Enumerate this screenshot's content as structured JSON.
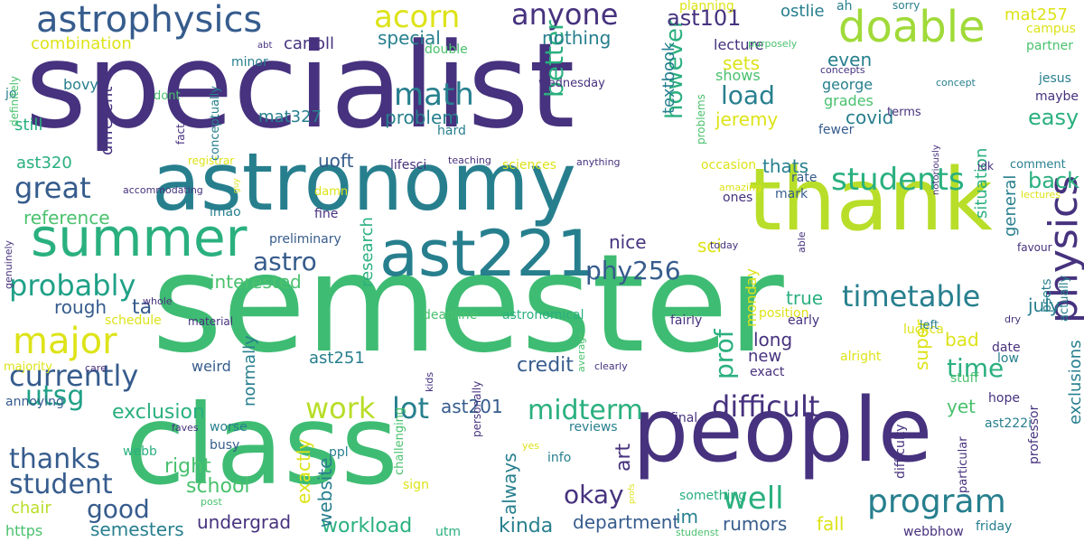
{
  "palette": {
    "purple": "#46327e",
    "teal": "#277f8e",
    "green": "#4ac16d",
    "lime": "#b8de29",
    "blue": "#365c8d",
    "cyan": "#1fa187",
    "yellow": "#dde318"
  },
  "words": [
    {
      "text": "specialist",
      "color": "#46327e",
      "rot": 0
    },
    {
      "text": "semester",
      "color": "#3fbc73",
      "rot": 0
    },
    {
      "text": "class",
      "color": "#3fbc73",
      "rot": 0
    },
    {
      "text": "astronomy",
      "color": "#277f8e",
      "rot": 0
    },
    {
      "text": "people",
      "color": "#46327e",
      "rot": 0
    },
    {
      "text": "thank",
      "color": "#b8de29",
      "rot": 0
    },
    {
      "text": "ast221",
      "color": "#277f8e",
      "rot": 0
    },
    {
      "text": "summer",
      "color": "#2ab07f",
      "rot": 0
    },
    {
      "text": "astrophysics",
      "color": "#365c8d",
      "rot": 0
    },
    {
      "text": "doable",
      "color": "#a0da39",
      "rot": 0
    },
    {
      "text": "physics",
      "color": "#46327e",
      "rot": 90
    },
    {
      "text": "program",
      "color": "#277f8e",
      "rot": 0
    },
    {
      "text": "major",
      "color": "#dde318",
      "rot": 0
    },
    {
      "text": "students",
      "color": "#2ab07f",
      "rot": 0
    },
    {
      "text": "acorn",
      "color": "#dde318",
      "rot": 0
    },
    {
      "text": "math",
      "color": "#277f8e",
      "rot": 0
    },
    {
      "text": "anyone",
      "color": "#46327e",
      "rot": 0
    },
    {
      "text": "great",
      "color": "#365c8d",
      "rot": 0
    },
    {
      "text": "probably",
      "color": "#1fa187",
      "rot": 0
    },
    {
      "text": "currently",
      "color": "#365c8d",
      "rot": 0
    },
    {
      "text": "well",
      "color": "#2ab07f",
      "rot": 0
    },
    {
      "text": "work",
      "color": "#b8de29",
      "rot": 0
    },
    {
      "text": "difficult",
      "color": "#46327e",
      "rot": 0
    },
    {
      "text": "timetable",
      "color": "#277f8e",
      "rot": 0
    },
    {
      "text": "midterm",
      "color": "#2ab07f",
      "rot": 0
    },
    {
      "text": "okay",
      "color": "#46327e",
      "rot": 0
    },
    {
      "text": "thanks",
      "color": "#365c8d",
      "rot": 0
    },
    {
      "text": "student",
      "color": "#365c8d",
      "rot": 0
    },
    {
      "text": "utsg",
      "color": "#1fa187",
      "rot": 0
    },
    {
      "text": "good",
      "color": "#365c8d",
      "rot": 0
    },
    {
      "text": "lot",
      "color": "#277f8e",
      "rot": 0
    },
    {
      "text": "time",
      "color": "#2ab07f",
      "rot": 0
    },
    {
      "text": "prof",
      "color": "#2ab07f",
      "rot": 90
    },
    {
      "text": "load",
      "color": "#277f8e",
      "rot": 0
    },
    {
      "text": "phy256",
      "color": "#365c8d",
      "rot": 0
    },
    {
      "text": "astro",
      "color": "#365c8d",
      "rot": 0
    },
    {
      "text": "better",
      "color": "#2ab07f",
      "rot": 90
    },
    {
      "text": "however",
      "color": "#2ab07f",
      "rot": 90
    },
    {
      "text": "ast101",
      "color": "#46327e",
      "rot": 0
    },
    {
      "text": "easy",
      "color": "#2ab07f",
      "rot": 0
    },
    {
      "text": "back",
      "color": "#2ab07f",
      "rot": 0
    },
    {
      "text": "exclusion",
      "color": "#2ab07f",
      "rot": 0
    },
    {
      "text": "right",
      "color": "#4ac16d",
      "rot": 0
    },
    {
      "text": "school",
      "color": "#4ac16d",
      "rot": 0
    },
    {
      "text": "kinda",
      "color": "#277f8e",
      "rot": 0
    },
    {
      "text": "department",
      "color": "#365c8d",
      "rot": 0
    },
    {
      "text": "workload",
      "color": "#2ab07f",
      "rot": 0
    },
    {
      "text": "undergrad",
      "color": "#46327e",
      "rot": 0
    },
    {
      "text": "semesters",
      "color": "#277f8e",
      "rot": 0
    },
    {
      "text": "rumors",
      "color": "#365c8d",
      "rot": 0
    },
    {
      "text": "fall",
      "color": "#dde318",
      "rot": 0
    },
    {
      "text": "im",
      "color": "#277f8e",
      "rot": 0
    },
    {
      "text": "credit",
      "color": "#365c8d",
      "rot": 0
    },
    {
      "text": "ast201",
      "color": "#365c8d",
      "rot": 0
    },
    {
      "text": "art",
      "color": "#46327e",
      "rot": 90
    },
    {
      "text": "always",
      "color": "#277f8e",
      "rot": 90
    },
    {
      "text": "website",
      "color": "#277f8e",
      "rot": 90
    },
    {
      "text": "exactly",
      "color": "#dde318",
      "rot": 90
    },
    {
      "text": "problem",
      "color": "#277f8e",
      "rot": 0
    },
    {
      "text": "special",
      "color": "#277f8e",
      "rot": 0
    },
    {
      "text": "nothing",
      "color": "#277f8e",
      "rot": 0
    },
    {
      "text": "sets",
      "color": "#dde318",
      "rot": 0
    },
    {
      "text": "even",
      "color": "#277f8e",
      "rot": 0
    },
    {
      "text": "jeremy",
      "color": "#dde318",
      "rot": 0
    },
    {
      "text": "covid",
      "color": "#277f8e",
      "rot": 0
    },
    {
      "text": "thats",
      "color": "#277f8e",
      "rot": 0
    },
    {
      "text": "uoft",
      "color": "#365c8d",
      "rot": 0
    },
    {
      "text": "reference",
      "color": "#4ac16d",
      "rot": 0
    },
    {
      "text": "interested",
      "color": "#4ac16d",
      "rot": 0
    },
    {
      "text": "rough",
      "color": "#365c8d",
      "rot": 0
    },
    {
      "text": "ta",
      "color": "#365c8d",
      "rot": 0
    },
    {
      "text": "nice",
      "color": "#46327e",
      "rot": 0
    },
    {
      "text": "true",
      "color": "#2ab07f",
      "rot": 0
    },
    {
      "text": "long",
      "color": "#46327e",
      "rot": 0
    },
    {
      "text": "new",
      "color": "#46327e",
      "rot": 0
    },
    {
      "text": "july",
      "color": "#277f8e",
      "rot": 0
    },
    {
      "text": "bad",
      "color": "#dde318",
      "rot": 0
    },
    {
      "text": "yet",
      "color": "#4ac16d",
      "rot": 0
    },
    {
      "text": "super",
      "color": "#dde318",
      "rot": 90
    },
    {
      "text": "sci",
      "color": "#dde318",
      "rot": 0
    },
    {
      "text": "ast251",
      "color": "#277f8e",
      "rot": 0
    },
    {
      "text": "mat327",
      "color": "#277f8e",
      "rot": 0
    },
    {
      "text": "carroll",
      "color": "#46327e",
      "rot": 0
    },
    {
      "text": "combination",
      "color": "#dde318",
      "rot": 0
    },
    {
      "text": "mat257",
      "color": "#dde318",
      "rot": 0
    },
    {
      "text": "ostlie",
      "color": "#277f8e",
      "rot": 0
    },
    {
      "text": "situation",
      "color": "#2ab07f",
      "rot": 90
    },
    {
      "text": "general",
      "color": "#277f8e",
      "rot": 90
    },
    {
      "text": "george",
      "color": "#277f8e",
      "rot": 0
    },
    {
      "text": "grades",
      "color": "#4ac16d",
      "rot": 0
    },
    {
      "text": "lecture",
      "color": "#46327e",
      "rot": 0
    },
    {
      "text": "shows",
      "color": "#4ac16d",
      "rot": 0
    },
    {
      "text": "textbook",
      "color": "#277f8e",
      "rot": 90
    },
    {
      "text": "still",
      "color": "#2ab07f",
      "rot": 0
    },
    {
      "text": "ast320",
      "color": "#2ab07f",
      "rot": 0
    },
    {
      "text": "bovy",
      "color": "#277f8e",
      "rot": 0
    },
    {
      "text": "different",
      "color": "#46327e",
      "rot": 90
    },
    {
      "text": "research",
      "color": "#2ab07f",
      "rot": 90
    },
    {
      "text": "normally",
      "color": "#277f8e",
      "rot": 90
    },
    {
      "text": "monday",
      "color": "#dde318",
      "rot": 90
    },
    {
      "text": "weird",
      "color": "#365c8d",
      "rot": 0
    },
    {
      "text": "exclusions",
      "color": "#277f8e",
      "rot": 90
    },
    {
      "text": "chair",
      "color": "#b8de29",
      "rot": 0
    },
    {
      "text": "https",
      "color": "#4ac16d",
      "rot": 0
    },
    {
      "text": "webb",
      "color": "#2ab07f",
      "rot": 0
    },
    {
      "text": "busy",
      "color": "#365c8d",
      "rot": 0
    },
    {
      "text": "worse",
      "color": "#277f8e",
      "rot": 0
    },
    {
      "text": "final",
      "color": "#46327e",
      "rot": 0
    },
    {
      "text": "reviews",
      "color": "#277f8e",
      "rot": 0
    },
    {
      "text": "info",
      "color": "#277f8e",
      "rot": 0
    },
    {
      "text": "something",
      "color": "#2ab07f",
      "rot": 0
    },
    {
      "text": "friday",
      "color": "#277f8e",
      "rot": 0
    },
    {
      "text": "webbhow",
      "color": "#46327e",
      "rot": 0
    },
    {
      "text": "utm",
      "color": "#2ab07f",
      "rot": 0
    },
    {
      "text": "sign",
      "color": "#dde318",
      "rot": 0
    },
    {
      "text": "ppl",
      "color": "#277f8e",
      "rot": 0
    },
    {
      "text": "hope",
      "color": "#46327e",
      "rot": 0
    },
    {
      "text": "ast222i",
      "color": "#277f8e",
      "rot": 0
    },
    {
      "text": "date",
      "color": "#46327e",
      "rot": 0
    },
    {
      "text": "low",
      "color": "#277f8e",
      "rot": 0
    },
    {
      "text": "stuff",
      "color": "#4ac16d",
      "rot": 0
    },
    {
      "text": "exact",
      "color": "#46327e",
      "rot": 0
    },
    {
      "text": "fairly",
      "color": "#46327e",
      "rot": 0
    },
    {
      "text": "early",
      "color": "#46327e",
      "rot": 0
    },
    {
      "text": "alright",
      "color": "#dde318",
      "rot": 0
    },
    {
      "text": "luckca",
      "color": "#dde318",
      "rot": 0
    },
    {
      "text": "position",
      "color": "#dde318",
      "rot": 0
    },
    {
      "text": "mark",
      "color": "#365c8d",
      "rot": 0
    },
    {
      "text": "rate",
      "color": "#365c8d",
      "rot": 0
    },
    {
      "text": "ones",
      "color": "#46327e",
      "rot": 0
    },
    {
      "text": "occasion",
      "color": "#dde318",
      "rot": 0
    },
    {
      "text": "sciences",
      "color": "#dde318",
      "rot": 0
    },
    {
      "text": "registrar",
      "color": "#dde318",
      "rot": 0
    },
    {
      "text": "lifesci",
      "color": "#46327e",
      "rot": 0
    },
    {
      "text": "teaching",
      "color": "#46327e",
      "rot": 0
    },
    {
      "text": "anything",
      "color": "#46327e",
      "rot": 0
    },
    {
      "text": "lmao",
      "color": "#277f8e",
      "rot": 0
    },
    {
      "text": "fine",
      "color": "#46327e",
      "rot": 0
    },
    {
      "text": "preliminary",
      "color": "#365c8d",
      "rot": 0
    },
    {
      "text": "damn",
      "color": "#dde318",
      "rot": 0
    },
    {
      "text": "deadline",
      "color": "#4ac16d",
      "rot": 0
    },
    {
      "text": "astronomical",
      "color": "#2ab07f",
      "rot": 0
    },
    {
      "text": "schedule",
      "color": "#dde318",
      "rot": 0
    },
    {
      "text": "material",
      "color": "#46327e",
      "rot": 0
    },
    {
      "text": "majority",
      "color": "#dde318",
      "rot": 0
    },
    {
      "text": "care",
      "color": "#46327e",
      "rot": 0
    },
    {
      "text": "annoying",
      "color": "#365c8d",
      "rot": 0
    },
    {
      "text": "faves",
      "color": "#46327e",
      "rot": 0
    },
    {
      "text": "post",
      "color": "#4ac16d",
      "rot": 0
    },
    {
      "text": "studenst",
      "color": "#4ac16d",
      "rot": 0
    },
    {
      "text": "yes",
      "color": "#dde318",
      "rot": 0
    },
    {
      "text": "clearly",
      "color": "#46327e",
      "rot": 0
    },
    {
      "text": "whole",
      "color": "#46327e",
      "rot": 0
    },
    {
      "text": "extra",
      "color": "#4ac16d",
      "rot": 0
    },
    {
      "text": "today",
      "color": "#46327e",
      "rot": 0
    },
    {
      "text": "amazing",
      "color": "#dde318",
      "rot": 0
    },
    {
      "text": "idk",
      "color": "#46327e",
      "rot": 0
    },
    {
      "text": "comment",
      "color": "#277f8e",
      "rot": 0
    },
    {
      "text": "lectures",
      "color": "#dde318",
      "rot": 0
    },
    {
      "text": "favour",
      "color": "#46327e",
      "rot": 0
    },
    {
      "text": "dry",
      "color": "#46327e",
      "rot": 0
    },
    {
      "text": "left",
      "color": "#277f8e",
      "rot": 0
    },
    {
      "text": "maybe",
      "color": "#46327e",
      "rot": 0
    },
    {
      "text": "terms",
      "color": "#46327e",
      "rot": 0
    },
    {
      "text": "fewer",
      "color": "#365c8d",
      "rot": 0
    },
    {
      "text": "jesus",
      "color": "#277f8e",
      "rot": 0
    },
    {
      "text": "campus",
      "color": "#dde318",
      "rot": 0
    },
    {
      "text": "partner",
      "color": "#4ac16d",
      "rot": 0
    },
    {
      "text": "sorry",
      "color": "#277f8e",
      "rot": 0
    },
    {
      "text": "ah",
      "color": "#277f8e",
      "rot": 0
    },
    {
      "text": "planning",
      "color": "#dde318",
      "rot": 0
    },
    {
      "text": "purposely",
      "color": "#4ac16d",
      "rot": 0
    },
    {
      "text": "concepts",
      "color": "#46327e",
      "rot": 0
    },
    {
      "text": "concept",
      "color": "#277f8e",
      "rot": 0
    },
    {
      "text": "hard",
      "color": "#277f8e",
      "rot": 0
    },
    {
      "text": "wednesday",
      "color": "#46327e",
      "rot": 0
    },
    {
      "text": "double",
      "color": "#4ac16d",
      "rot": 0
    },
    {
      "text": "minor",
      "color": "#277f8e",
      "rot": 0
    },
    {
      "text": "abt",
      "color": "#46327e",
      "rot": 0
    },
    {
      "text": "dont",
      "color": "#4ac16d",
      "rot": 0
    },
    {
      "text": "jo",
      "color": "#277f8e",
      "rot": 0
    },
    {
      "text": "problems",
      "color": "#4ac16d",
      "rot": 90
    },
    {
      "text": "conceptually",
      "color": "#277f8e",
      "rot": 90
    },
    {
      "text": "fact",
      "color": "#46327e",
      "rot": 90
    },
    {
      "text": "definitely",
      "color": "#4ac16d",
      "rot": 90
    },
    {
      "text": "accommodating",
      "color": "#46327e",
      "rot": 0
    },
    {
      "text": "guy",
      "color": "#dde318",
      "rot": 90
    },
    {
      "text": "genuinely",
      "color": "#46327e",
      "rot": 90
    },
    {
      "text": "able",
      "color": "#46327e",
      "rot": 90
    },
    {
      "text": "average",
      "color": "#4ac16d",
      "rot": 90
    },
    {
      "text": "personally",
      "color": "#46327e",
      "rot": 90
    },
    {
      "text": "kids",
      "color": "#46327e",
      "rot": 90
    },
    {
      "text": "challenging",
      "color": "#4ac16d",
      "rot": 90
    },
    {
      "text": "profs",
      "color": "#dde318",
      "rot": 90
    },
    {
      "text": "difficulty",
      "color": "#46327e",
      "rot": 90
    },
    {
      "text": "particular",
      "color": "#46327e",
      "rot": 90
    },
    {
      "text": "professor",
      "color": "#46327e",
      "rot": 90
    },
    {
      "text": "psets",
      "color": "#277f8e",
      "rot": 90
    },
    {
      "text": "actually",
      "color": "#277f8e",
      "rot": 90
    },
    {
      "text": "notoriously",
      "color": "#46327e",
      "rot": 90
    }
  ]
}
